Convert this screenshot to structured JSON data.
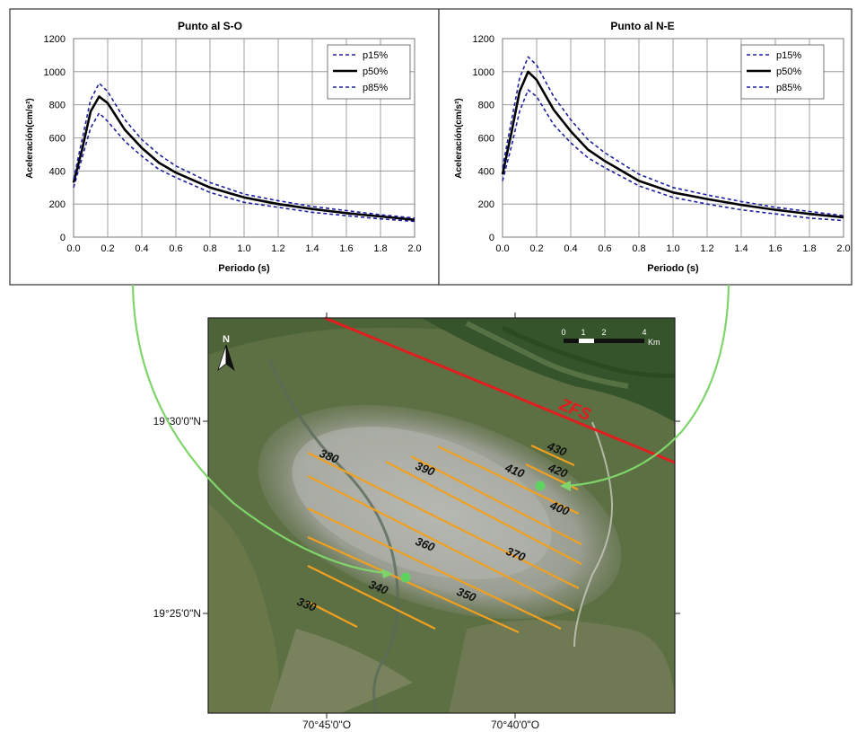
{
  "chart_data": [
    {
      "type": "line",
      "title": "Punto al S-O",
      "xlabel": "Periodo (s)",
      "ylabel": "Aceleración(cm/s²)",
      "xlim": [
        0.0,
        2.0
      ],
      "ylim": [
        0,
        1200
      ],
      "xticks": [
        "0.0",
        "0.2",
        "0.4",
        "0.6",
        "0.8",
        "1.0",
        "1.2",
        "1.4",
        "1.6",
        "1.8",
        "2.0"
      ],
      "yticks": [
        "0",
        "200",
        "400",
        "600",
        "800",
        "1000",
        "1200"
      ],
      "grid": true,
      "legend_position": "top-right",
      "series": [
        {
          "name": "p15%",
          "color": "#1f1fa0",
          "style": "dashed",
          "x": [
            0.0,
            0.05,
            0.1,
            0.15,
            0.2,
            0.3,
            0.4,
            0.5,
            0.6,
            0.8,
            1.0,
            1.2,
            1.4,
            1.6,
            1.8,
            2.0
          ],
          "y": [
            300,
            480,
            660,
            750,
            700,
            580,
            490,
            410,
            360,
            270,
            210,
            180,
            150,
            130,
            110,
            95
          ]
        },
        {
          "name": "p50%",
          "color": "#000000",
          "style": "solid",
          "x": [
            0.0,
            0.05,
            0.1,
            0.15,
            0.2,
            0.3,
            0.4,
            0.5,
            0.6,
            0.8,
            1.0,
            1.2,
            1.4,
            1.6,
            1.8,
            2.0
          ],
          "y": [
            330,
            530,
            760,
            850,
            810,
            650,
            540,
            450,
            390,
            300,
            240,
            200,
            170,
            145,
            125,
            105
          ]
        },
        {
          "name": "p85%",
          "color": "#1f1fa0",
          "style": "dashed",
          "x": [
            0.0,
            0.05,
            0.1,
            0.15,
            0.2,
            0.3,
            0.4,
            0.5,
            0.6,
            0.8,
            1.0,
            1.2,
            1.4,
            1.6,
            1.8,
            2.0
          ],
          "y": [
            350,
            590,
            830,
            930,
            880,
            710,
            590,
            500,
            430,
            330,
            260,
            220,
            185,
            160,
            135,
            115
          ]
        }
      ]
    },
    {
      "type": "line",
      "title": "Punto al N-E",
      "xlabel": "Periodo (s)",
      "ylabel": "Aceleración(cm/s²)",
      "xlim": [
        0.0,
        2.0
      ],
      "ylim": [
        0,
        1200
      ],
      "xticks": [
        "0.0",
        "0.2",
        "0.4",
        "0.6",
        "0.8",
        "1.0",
        "1.2",
        "1.4",
        "1.6",
        "1.8",
        "2.0"
      ],
      "yticks": [
        "0",
        "200",
        "400",
        "600",
        "800",
        "1000",
        "1200"
      ],
      "grid": true,
      "legend_position": "top-right",
      "series": [
        {
          "name": "p15%",
          "color": "#1f1fa0",
          "style": "dashed",
          "x": [
            0.0,
            0.05,
            0.1,
            0.15,
            0.2,
            0.3,
            0.4,
            0.5,
            0.6,
            0.8,
            1.0,
            1.2,
            1.4,
            1.6,
            1.8,
            2.0
          ],
          "y": [
            340,
            540,
            760,
            890,
            850,
            680,
            570,
            480,
            420,
            310,
            240,
            200,
            165,
            140,
            115,
            100
          ]
        },
        {
          "name": "p50%",
          "color": "#000000",
          "style": "solid",
          "x": [
            0.0,
            0.05,
            0.1,
            0.15,
            0.2,
            0.3,
            0.4,
            0.5,
            0.6,
            0.8,
            1.0,
            1.2,
            1.4,
            1.6,
            1.8,
            2.0
          ],
          "y": [
            380,
            620,
            880,
            1000,
            950,
            770,
            640,
            530,
            460,
            340,
            270,
            230,
            195,
            165,
            140,
            120
          ]
        },
        {
          "name": "p85%",
          "color": "#1f1fa0",
          "style": "dashed",
          "x": [
            0.0,
            0.05,
            0.1,
            0.15,
            0.2,
            0.3,
            0.4,
            0.5,
            0.6,
            0.8,
            1.0,
            1.2,
            1.4,
            1.6,
            1.8,
            2.0
          ],
          "y": [
            420,
            690,
            960,
            1090,
            1040,
            850,
            710,
            590,
            510,
            380,
            300,
            255,
            215,
            180,
            155,
            130
          ]
        }
      ]
    }
  ],
  "map": {
    "north_label": "N",
    "scale_ticks": [
      "0",
      "1",
      "2",
      "4"
    ],
    "scale_unit": "Km",
    "lat_labels": [
      "19°30'0\"N",
      "19°25'0\"N"
    ],
    "lon_labels": [
      "70°45'0\"O",
      "70°40'0\"O"
    ],
    "fault_label": "ZFS",
    "fault_color": "#e01e1e",
    "contour_color": "#f0a020",
    "point_color": "#5fd35f",
    "arrow_color": "#7fd46a",
    "contour_labels": [
      "430",
      "420",
      "410",
      "400",
      "390",
      "380",
      "370",
      "360",
      "350",
      "340",
      "330"
    ]
  }
}
